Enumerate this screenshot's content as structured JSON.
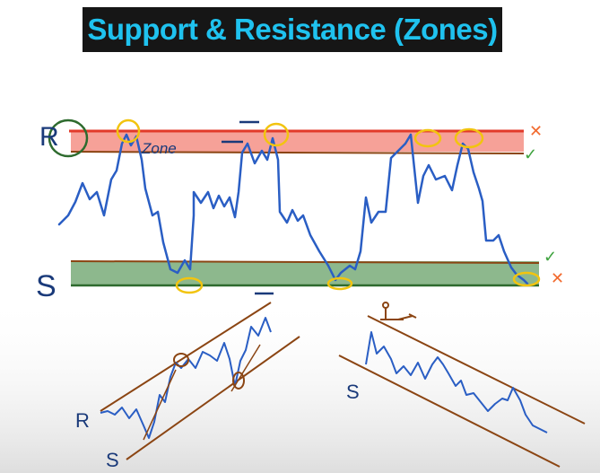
{
  "title": "Support & Resistance (Zones)",
  "colors": {
    "title_text": "#1fc2ef",
    "title_bg": "#161616",
    "resistance_zone": "#f6a198",
    "resistance_line": "#e23a2a",
    "support_zone": "#8db88d",
    "support_line": "#2e6b2e",
    "price_line": "#2a5ec4",
    "touch_circle": "#f2c40f",
    "trend_line": "#8b4513",
    "annotation_dark": "#1a3a7a",
    "check": "#3fa33f",
    "cross": "#f26a2e"
  },
  "annotations": {
    "resistance_letter": "R",
    "support_letter": "S",
    "zone_word": "Zone",
    "rising_channel_letter": "R",
    "rising_channel_support_letter": "S",
    "falling_channel_letter": "S"
  },
  "marks": {
    "check": "✓",
    "cross": "✕"
  }
}
